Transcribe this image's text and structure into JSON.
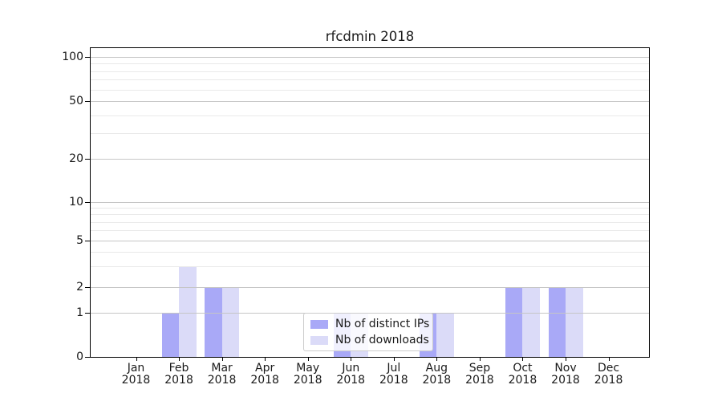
{
  "title": "rfcdmin 2018",
  "chart_data": {
    "type": "bar",
    "title": "rfcdmin 2018",
    "categories": [
      "Jan",
      "Feb",
      "Mar",
      "Apr",
      "May",
      "Jun",
      "Jul",
      "Aug",
      "Sep",
      "Oct",
      "Nov",
      "Dec"
    ],
    "category_year": "2018",
    "series": [
      {
        "name": "Nb of distinct IPs",
        "color": "#a9a9f7",
        "values": [
          0,
          1,
          2,
          0,
          0,
          1,
          0,
          1,
          0,
          2,
          2,
          0
        ]
      },
      {
        "name": "Nb of downloads",
        "color": "#dbdbf8",
        "values": [
          0,
          3,
          2,
          0,
          0,
          1,
          0,
          1,
          0,
          2,
          2,
          0
        ]
      }
    ],
    "xlabel": "",
    "ylabel": "",
    "yscale": "symlog",
    "ylim": [
      0,
      100
    ],
    "y_major_ticks": [
      0,
      1,
      2,
      5,
      10,
      20,
      50,
      100
    ],
    "y_minor_ticks": [
      3,
      4,
      6,
      7,
      8,
      9,
      30,
      40,
      60,
      70,
      80,
      90
    ],
    "grid": true,
    "legend_position": "lower center",
    "colors": {
      "major_grid": "#c6c6c6",
      "minor_grid": "#e9e9e9",
      "axis_frame": "#000000",
      "text": "#1a1a1a",
      "background": "#ffffff"
    }
  }
}
